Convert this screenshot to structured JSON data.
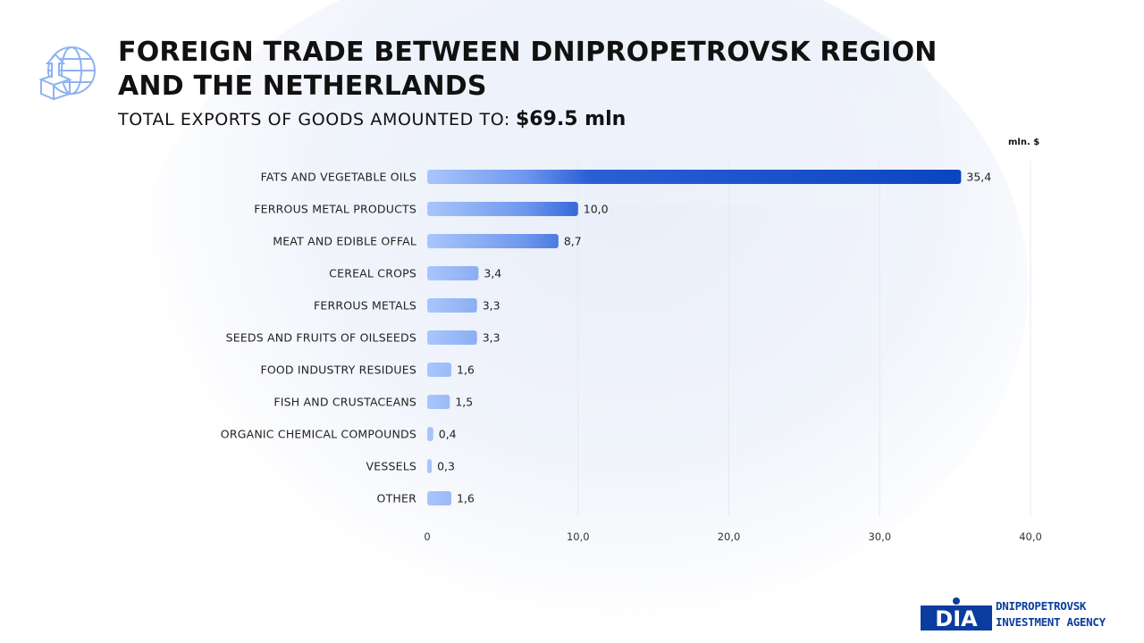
{
  "header": {
    "title": "FOREIGN TRADE BETWEEN DNIPROPETROVSK REGION AND THE NETHERLANDS",
    "subtitle_label": "TOTAL EXPORTS OF GOODS AMOUNTED TO:",
    "subtitle_value": "$69.5 mln",
    "units": "mln. $"
  },
  "icons": {
    "header_icon": "globe-export-icon"
  },
  "colors": {
    "bar_light": "#a9c6fb",
    "bar_dark": "#0a45c0",
    "grid": "#e6e9f0",
    "brand": "#0a3d9e"
  },
  "chart_data": {
    "type": "bar",
    "orientation": "horizontal",
    "categories": [
      "FATS AND VEGETABLE OILS",
      "FERROUS METAL PRODUCTS",
      "MEAT AND EDIBLE OFFAL",
      "CEREAL CROPS",
      "FERROUS METALS",
      "SEEDS AND FRUITS OF OILSEEDS",
      "FOOD INDUSTRY RESIDUES",
      "FISH AND CRUSTACEANS",
      "ORGANIC CHEMICAL COMPOUNDS",
      "VESSELS",
      "OTHER"
    ],
    "values": [
      35.4,
      10.0,
      8.7,
      3.4,
      3.3,
      3.3,
      1.6,
      1.5,
      0.4,
      0.3,
      1.6
    ],
    "value_labels": [
      "35,4",
      "10,0",
      "8,7",
      "3,4",
      "3,3",
      "3,3",
      "1,6",
      "1,5",
      "0,4",
      "0,3",
      "1,6"
    ],
    "x_ticks": [
      0,
      10,
      20,
      30,
      40
    ],
    "x_tick_labels": [
      "0",
      "10,0",
      "20,0",
      "30,0",
      "40,0"
    ],
    "xlim": [
      0,
      40
    ],
    "title": "",
    "xlabel": "",
    "ylabel": "",
    "grid": true
  },
  "logo": {
    "mark": "DIA",
    "line1": "DNIPROPETROVSK",
    "line2": "INVESTMENT AGENCY"
  }
}
